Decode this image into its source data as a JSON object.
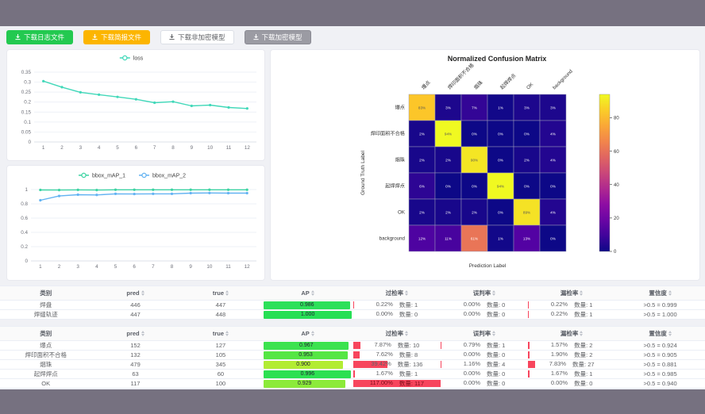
{
  "colors": {
    "band": "#767180",
    "btn_green": "#23c950",
    "btn_amber": "#fcb500",
    "btn_gray": "#9b9ba3",
    "loss_line": "#41d8b9",
    "map1_line": "#3dd3a3",
    "map2_line": "#63b3f2",
    "rate_bar_red": "#f7455d",
    "grid_line": "#e8ecf4",
    "axis_text": "#6e7079"
  },
  "toolbar": {
    "buttons": [
      {
        "label": "下载日志文件",
        "variant": "green"
      },
      {
        "label": "下载简报文件",
        "variant": "amber"
      },
      {
        "label": "下载非加密模型",
        "variant": "plain"
      },
      {
        "label": "下载加密模型",
        "variant": "gray"
      }
    ]
  },
  "chart_data": [
    {
      "type": "line",
      "name": "loss-chart",
      "x": [
        1,
        2,
        3,
        4,
        5,
        6,
        7,
        8,
        9,
        10,
        11,
        12
      ],
      "series": [
        {
          "name": "loss",
          "color": "#41d8b9",
          "values": [
            0.305,
            0.275,
            0.249,
            0.237,
            0.226,
            0.214,
            0.197,
            0.202,
            0.181,
            0.185,
            0.173,
            0.168
          ]
        }
      ],
      "ylim": [
        0,
        0.35
      ],
      "yticks": [
        0,
        0.05,
        0.1,
        0.15,
        0.2,
        0.25,
        0.3,
        0.35
      ],
      "legend_position": "top-center",
      "grid": true
    },
    {
      "type": "line",
      "name": "map-chart",
      "x": [
        1,
        2,
        3,
        4,
        5,
        6,
        7,
        8,
        9,
        10,
        11,
        12
      ],
      "series": [
        {
          "name": "bbox_mAP_1",
          "color": "#3dd3a3",
          "values": [
            0.995,
            0.993,
            0.996,
            0.993,
            0.997,
            0.997,
            0.997,
            0.997,
            0.997,
            0.997,
            0.997,
            0.997
          ]
        },
        {
          "name": "bbox_mAP_2",
          "color": "#63b3f2",
          "values": [
            0.85,
            0.91,
            0.928,
            0.925,
            0.94,
            0.938,
            0.94,
            0.94,
            0.95,
            0.952,
            0.95,
            0.95
          ]
        }
      ],
      "ylim": [
        0,
        1
      ],
      "yticks": [
        0,
        0.2,
        0.4,
        0.6,
        0.8,
        1
      ],
      "legend_position": "top-center",
      "grid": true
    },
    {
      "type": "heatmap",
      "name": "confusion-matrix",
      "title": "Normalized Confusion Matrix",
      "xlabel": "Prediction Label",
      "ylabel": "Ground Truth Label",
      "labels": [
        "爆点",
        "焊印面积不合格",
        "烟珠",
        "起焊焊点",
        "OK",
        "background"
      ],
      "matrix": [
        [
          83,
          3,
          7,
          1,
          3,
          3
        ],
        [
          2,
          94,
          0,
          0,
          0,
          4
        ],
        [
          2,
          2,
          90,
          0,
          2,
          4
        ],
        [
          6,
          0,
          0,
          94,
          0,
          0
        ],
        [
          2,
          2,
          2,
          0,
          89,
          4
        ],
        [
          12,
          11,
          61,
          1,
          13,
          0
        ]
      ],
      "unit": "%",
      "vmax": 94,
      "colorbar_ticks": [
        80,
        60,
        40,
        20,
        0
      ],
      "colormap": "plasma"
    }
  ],
  "tables": [
    {
      "headers": [
        "类别",
        "pred",
        "true",
        "AP",
        "过检率",
        "误判率",
        "漏检率",
        "置信度"
      ],
      "count_label": "数量:",
      "rows": [
        {
          "name": "焊盘",
          "pred": "446",
          "true": "447",
          "ap": "0.986",
          "ap_color": "#2ce05a",
          "over": {
            "pct": "0.22%",
            "count": "1",
            "bar": 0.22
          },
          "mis": {
            "pct": "0.00%",
            "count": "0",
            "bar": 0
          },
          "miss": {
            "pct": "0.22%",
            "count": "1",
            "bar": 0.22
          },
          "conf": ">0.5 = 0.999"
        },
        {
          "name": "焊缝轨迹",
          "pred": "447",
          "true": "448",
          "ap": "1.000",
          "ap_color": "#26df55",
          "over": {
            "pct": "0.00%",
            "count": "0",
            "bar": 0
          },
          "mis": {
            "pct": "0.00%",
            "count": "0",
            "bar": 0
          },
          "miss": {
            "pct": "0.22%",
            "count": "1",
            "bar": 0.22
          },
          "conf": ">0.5 = 1.000"
        }
      ]
    },
    {
      "headers": [
        "类别",
        "pred",
        "true",
        "AP",
        "过检率",
        "误判率",
        "漏检率",
        "置信度"
      ],
      "count_label": "数量:",
      "rows": [
        {
          "name": "爆点",
          "pred": "152",
          "true": "127",
          "ap": "0.967",
          "ap_color": "#3be24f",
          "over": {
            "pct": "7.87%",
            "count": "10",
            "bar": 7.87
          },
          "mis": {
            "pct": "0.79%",
            "count": "1",
            "bar": 0.79
          },
          "miss": {
            "pct": "1.57%",
            "count": "2",
            "bar": 1.57
          },
          "conf": ">0.5 = 0.924"
        },
        {
          "name": "焊印面积不合格",
          "pred": "132",
          "true": "105",
          "ap": "0.953",
          "ap_color": "#55e644",
          "over": {
            "pct": "7.62%",
            "count": "8",
            "bar": 7.62
          },
          "mis": {
            "pct": "0.00%",
            "count": "0",
            "bar": 0
          },
          "miss": {
            "pct": "1.90%",
            "count": "2",
            "bar": 1.9
          },
          "conf": ">0.5 = 0.905"
        },
        {
          "name": "烟珠",
          "pred": "479",
          "true": "345",
          "ap": "0.900",
          "ap_color": "#b2ec33",
          "over": {
            "pct": "39.42%",
            "count": "136",
            "bar": 39.42
          },
          "mis": {
            "pct": "1.16%",
            "count": "4",
            "bar": 1.16
          },
          "miss": {
            "pct": "7.83%",
            "count": "27",
            "bar": 7.83
          },
          "conf": ">0.5 = 0.881"
        },
        {
          "name": "起焊焊点",
          "pred": "63",
          "true": "60",
          "ap": "0.996",
          "ap_color": "#2ce051",
          "over": {
            "pct": "1.67%",
            "count": "1",
            "bar": 1.67
          },
          "mis": {
            "pct": "0.00%",
            "count": "0",
            "bar": 0
          },
          "miss": {
            "pct": "1.67%",
            "count": "1",
            "bar": 1.67
          },
          "conf": ">0.5 = 0.985"
        },
        {
          "name": "OK",
          "pred": "117",
          "true": "100",
          "ap": "0.929",
          "ap_color": "#8cea3a",
          "over": {
            "pct": "117.00%",
            "count": "117",
            "bar": 100,
            "full": true
          },
          "mis": {
            "pct": "0.00%",
            "count": "0",
            "bar": 0
          },
          "miss": {
            "pct": "0.00%",
            "count": "0",
            "bar": 0
          },
          "conf": ">0.5 = 0.940"
        }
      ]
    }
  ]
}
